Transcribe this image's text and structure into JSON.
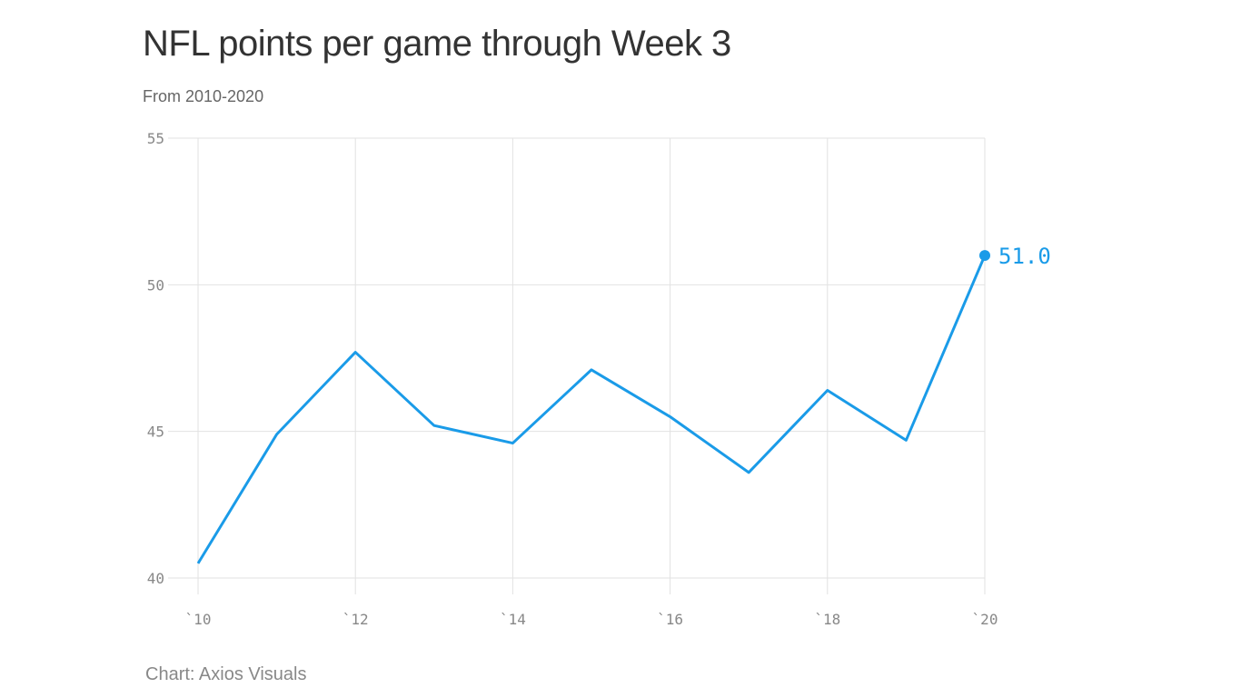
{
  "title": "NFL points per game through Week 3",
  "subtitle": "From 2010-2020",
  "source": "Chart: Axios Visuals",
  "chart_data": {
    "type": "line",
    "title": "NFL points per game through Week 3",
    "subtitle": "From 2010-2020",
    "x": [
      2010,
      2011,
      2012,
      2013,
      2014,
      2015,
      2016,
      2017,
      2018,
      2019,
      2020
    ],
    "series": [
      {
        "values": [
          40.5,
          44.9,
          47.7,
          45.2,
          44.6,
          47.1,
          45.5,
          43.6,
          46.4,
          44.7,
          51.0
        ],
        "color": "#1a9be8"
      }
    ],
    "xlim": [
      2010,
      2020
    ],
    "ylim": [
      40,
      55
    ],
    "x_ticks": [
      "`10",
      "`12",
      "`14",
      "`16",
      "`18",
      "`20"
    ],
    "x_tick_values": [
      2010,
      2012,
      2014,
      2016,
      2018,
      2020
    ],
    "y_ticks": [
      "40",
      "45",
      "50",
      "55"
    ],
    "y_tick_values": [
      40,
      45,
      50,
      55
    ],
    "end_label": "51.0",
    "grid": true,
    "xlabel": "",
    "ylabel": ""
  }
}
